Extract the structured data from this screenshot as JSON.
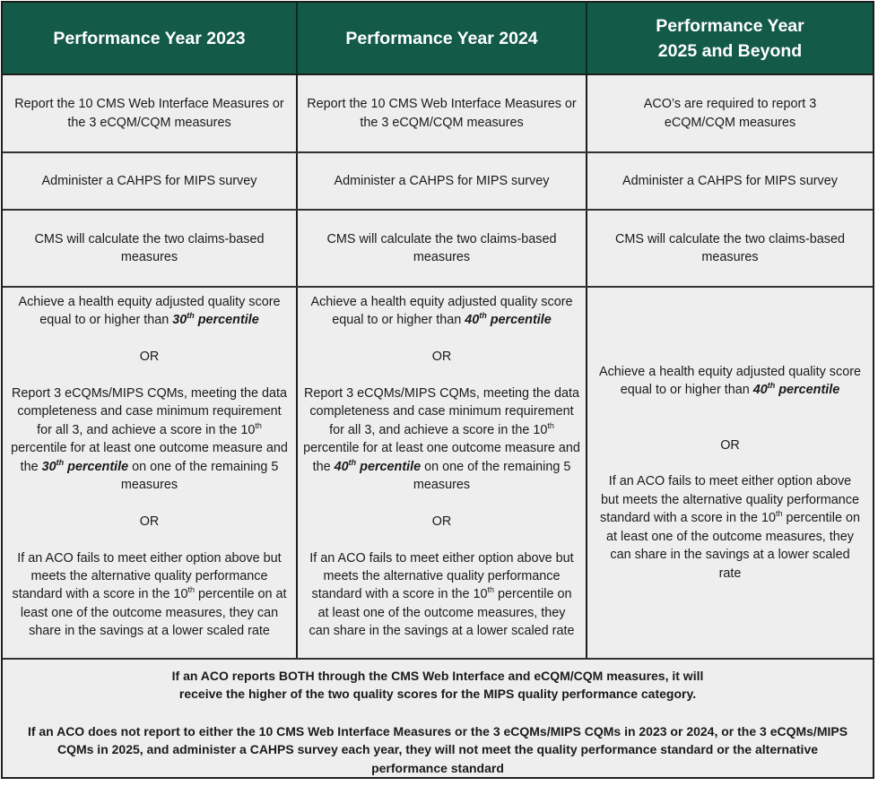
{
  "header": {
    "columns": [
      {
        "line1": "Performance Year 2023",
        "line2": ""
      },
      {
        "line1": "Performance Year 2024",
        "line2": ""
      },
      {
        "line1": "Performance Year",
        "line2": "2025 and Beyond"
      }
    ],
    "background_color": "#135a48",
    "text_color": "#ffffff"
  },
  "rows": {
    "reporting": [
      "Report the 10 CMS Web Interface Measures or the 3 eCQM/CQM measures",
      "Report the 10 CMS Web Interface Measures or the 3 eCQM/CQM measures",
      "ACO’s are required to report 3 eCQM/CQM measures"
    ],
    "survey": [
      "Administer a CAHPS for MIPS survey",
      "Administer a CAHPS for MIPS survey",
      "Administer a CAHPS for MIPS survey"
    ],
    "claims": [
      "CMS will calculate the two claims-based measures",
      "CMS will calculate the two claims-based measures",
      "CMS will calculate the two claims-based measures"
    ],
    "standard": {
      "y2023": {
        "opt1_pre": "Achieve a health equity adjusted quality score equal to or higher than ",
        "opt1_num": "30",
        "opt1_sup": "th",
        "opt1_post": " percentile",
        "or": "OR",
        "opt2_a": "Report 3 eCQMs/MIPS  CQMs, meeting the data completeness and case minimum requirement for all 3, and achieve a score in the 10",
        "opt2_sup1": "th",
        "opt2_b": " percentile for at least one outcome measure and the ",
        "opt2_num": "30",
        "opt2_sup2": "th",
        "opt2_bold": " percentile",
        "opt2_c": " on one of the remaining 5 measures",
        "opt3_a": "If an ACO fails to meet either option above but meets the alternative quality performance standard  with a score in the 10",
        "opt3_sup": "th",
        "opt3_b": " percentile on at least one of the outcome measures, they can share in the savings at a lower scaled rate"
      },
      "y2024": {
        "opt1_pre": "Achieve a health equity adjusted quality score equal to or higher than ",
        "opt1_num": "40",
        "opt1_sup": "th",
        "opt1_post": " percentile",
        "or": "OR",
        "opt2_a": "Report 3 eCQMs/MIPS  CQMs, meeting the data completeness and case minimum requirement for all 3, and achieve a score in the 10",
        "opt2_sup1": "th",
        "opt2_b": " percentile for at least one outcome measure and the ",
        "opt2_num": "40",
        "opt2_sup2": "th",
        "opt2_bold": " percentile",
        "opt2_c": " on one of the remaining 5 measures",
        "opt3_a": "If an ACO fails to meet either option above but meets the alternative quality performance standard  with a score in the ",
        "opt3_num": "10",
        "opt3_sup": "th",
        "opt3_b": " percentile on at least one of the outcome measures, they can share in the savings at a lower scaled rate"
      },
      "y2025": {
        "opt1_pre": "Achieve a health equity adjusted quality score equal to or higher than ",
        "opt1_num": "40",
        "opt1_sup": "th",
        "opt1_post": " percentile",
        "or": "OR",
        "opt3_a": "If an ACO fails to meet either option above but meets the alternative quality performance standard  with a score in the ",
        "opt3_num": "10",
        "opt3_sup": "th",
        "opt3_b": " percentile on at least one of the outcome measures, they can share in the savings at a lower scaled rate"
      }
    }
  },
  "footer": {
    "note1": "If an ACO reports BOTH through the CMS Web Interface and eCQM/CQM measures, it will receive the higher of the two quality scores for the MIPS quality performance category.",
    "note2": "If an ACO does not report to either the 10 CMS Web Interface Measures or the 3 eCQMs/MIPS CQMs in 2023 or 2024, or the 3 eCQMs/MIPS CQMs in 2025, and administer a CAHPS survey each year, they will not meet the quality performance standard or the alternative performance standard"
  }
}
